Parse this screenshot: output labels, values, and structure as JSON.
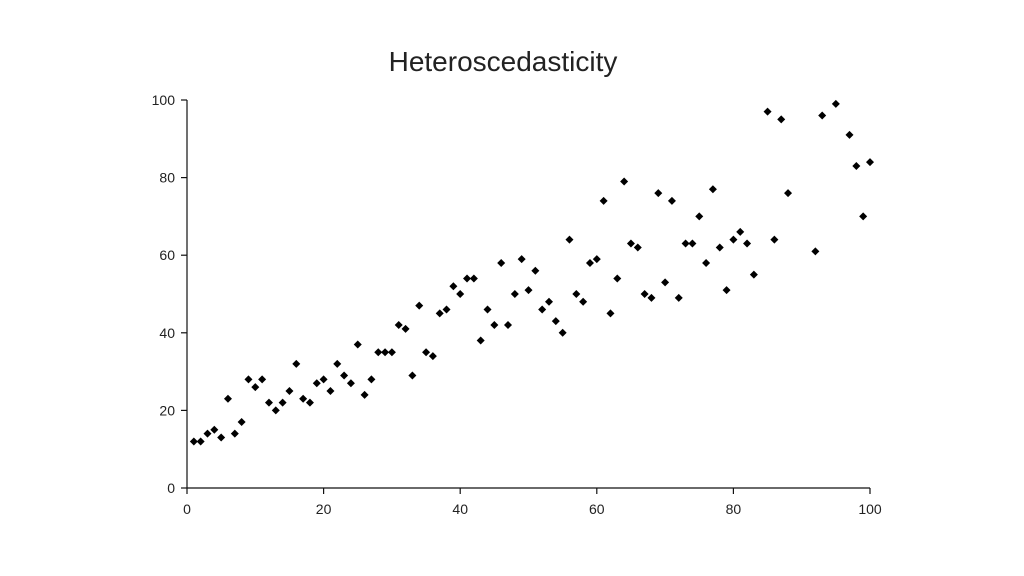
{
  "chart_data": {
    "type": "scatter",
    "title": "Heteroscedasticity",
    "xlabel": "",
    "ylabel": "",
    "xlim": [
      0,
      100
    ],
    "ylim": [
      0,
      100
    ],
    "xticks": [
      0,
      20,
      40,
      60,
      80,
      100
    ],
    "yticks": [
      0,
      20,
      40,
      60,
      80,
      100
    ],
    "grid": false,
    "marker": "diamond",
    "marker_color": "#000000",
    "points": [
      [
        1,
        12
      ],
      [
        2,
        12
      ],
      [
        3,
        14
      ],
      [
        4,
        15
      ],
      [
        5,
        13
      ],
      [
        6,
        23
      ],
      [
        7,
        14
      ],
      [
        8,
        17
      ],
      [
        9,
        28
      ],
      [
        10,
        26
      ],
      [
        11,
        28
      ],
      [
        12,
        22
      ],
      [
        13,
        20
      ],
      [
        14,
        22
      ],
      [
        15,
        25
      ],
      [
        16,
        32
      ],
      [
        17,
        23
      ],
      [
        18,
        22
      ],
      [
        19,
        27
      ],
      [
        20,
        28
      ],
      [
        21,
        25
      ],
      [
        22,
        32
      ],
      [
        23,
        29
      ],
      [
        24,
        27
      ],
      [
        25,
        37
      ],
      [
        26,
        24
      ],
      [
        27,
        28
      ],
      [
        28,
        35
      ],
      [
        29,
        35
      ],
      [
        30,
        35
      ],
      [
        31,
        42
      ],
      [
        32,
        41
      ],
      [
        33,
        29
      ],
      [
        34,
        47
      ],
      [
        35,
        35
      ],
      [
        36,
        34
      ],
      [
        37,
        45
      ],
      [
        38,
        46
      ],
      [
        39,
        52
      ],
      [
        40,
        50
      ],
      [
        41,
        54
      ],
      [
        42,
        54
      ],
      [
        43,
        38
      ],
      [
        44,
        46
      ],
      [
        45,
        42
      ],
      [
        46,
        58
      ],
      [
        47,
        42
      ],
      [
        48,
        50
      ],
      [
        49,
        59
      ],
      [
        50,
        51
      ],
      [
        51,
        56
      ],
      [
        52,
        46
      ],
      [
        53,
        48
      ],
      [
        54,
        43
      ],
      [
        55,
        40
      ],
      [
        56,
        64
      ],
      [
        57,
        50
      ],
      [
        58,
        48
      ],
      [
        59,
        58
      ],
      [
        60,
        59
      ],
      [
        61,
        74
      ],
      [
        62,
        45
      ],
      [
        63,
        54
      ],
      [
        64,
        79
      ],
      [
        65,
        63
      ],
      [
        66,
        62
      ],
      [
        67,
        50
      ],
      [
        68,
        49
      ],
      [
        69,
        76
      ],
      [
        70,
        53
      ],
      [
        71,
        74
      ],
      [
        72,
        49
      ],
      [
        73,
        63
      ],
      [
        74,
        63
      ],
      [
        75,
        70
      ],
      [
        76,
        58
      ],
      [
        77,
        77
      ],
      [
        78,
        62
      ],
      [
        79,
        51
      ],
      [
        80,
        64
      ],
      [
        81,
        66
      ],
      [
        82,
        63
      ],
      [
        83,
        55
      ],
      [
        85,
        97
      ],
      [
        86,
        64
      ],
      [
        87,
        95
      ],
      [
        88,
        76
      ],
      [
        92,
        61
      ],
      [
        93,
        96
      ],
      [
        95,
        99
      ],
      [
        97,
        91
      ],
      [
        98,
        83
      ],
      [
        99,
        70
      ],
      [
        100,
        84
      ]
    ]
  }
}
